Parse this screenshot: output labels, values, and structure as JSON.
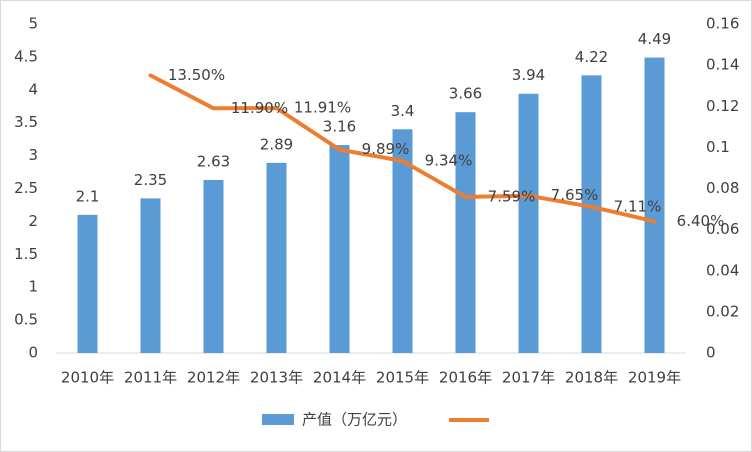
{
  "chart_data": {
    "type": "bar-line",
    "categories": [
      "2010年",
      "2011年",
      "2012年",
      "2013年",
      "2014年",
      "2015年",
      "2016年",
      "2017年",
      "2018年",
      "2019年"
    ],
    "series": [
      {
        "name": "产值（万亿元）",
        "type": "bar",
        "color": "#5b9bd5",
        "values": [
          2.1,
          2.35,
          2.63,
          2.89,
          3.16,
          3.4,
          3.66,
          3.94,
          4.22,
          4.49
        ]
      },
      {
        "type": "line",
        "axis": "y2",
        "color": "#ed7d31",
        "values": [
          null,
          0.135,
          0.119,
          0.1191,
          0.0989,
          0.0934,
          0.0759,
          0.0765,
          0.0711,
          0.064
        ],
        "value_labels": [
          null,
          "13.50%",
          "11.90%",
          "11.91%",
          "9.89%",
          "9.34%",
          "7.59%",
          "7.65%",
          "7.11%",
          "6.40%"
        ]
      }
    ],
    "ylim": [
      0,
      5
    ],
    "yticks": [
      0,
      0.5,
      1,
      1.5,
      2,
      2.5,
      3,
      3.5,
      4,
      4.5,
      5
    ],
    "y2lim": [
      0,
      0.16
    ],
    "y2ticks": [
      0,
      0.02,
      0.04,
      0.06,
      0.08,
      0.1,
      0.12,
      0.14,
      0.16
    ],
    "grid": false,
    "legend": "bottom"
  }
}
